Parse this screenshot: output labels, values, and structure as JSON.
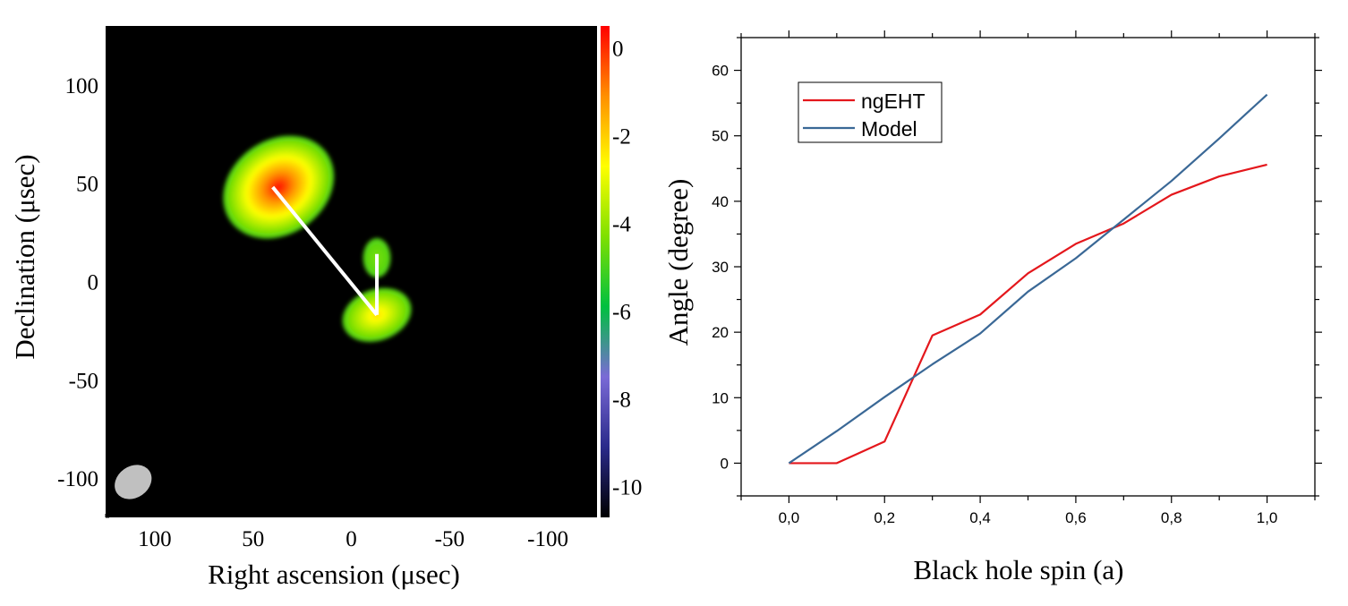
{
  "chart_data": [
    {
      "type": "heatmap",
      "xlabel": "Right ascension (μsec)",
      "ylabel": "Declination (μsec)",
      "xlim": [
        125,
        -125
      ],
      "ylim": [
        -120,
        130
      ],
      "xticks": [
        100,
        50,
        0,
        -50,
        -100
      ],
      "yticks": [
        100,
        50,
        0,
        -50,
        -100
      ],
      "xtick_labels": [
        "100",
        "50",
        "0",
        "-50",
        "-100"
      ],
      "ytick_labels": [
        "100",
        "50",
        "0",
        "-50",
        "-100"
      ],
      "background_color": "#000000",
      "colorbar": {
        "min": -10.7,
        "max": 0.5,
        "ticks": [
          0,
          -2,
          -4,
          -6,
          -8,
          -10
        ],
        "tick_labels": [
          "0",
          "-2",
          "-4",
          "-6",
          "-8",
          "-10"
        ],
        "colors": [
          "#000000",
          "#2a2a8a",
          "#7a6ad6",
          "#00c040",
          "#7fe000",
          "#ffff00",
          "#ff9000",
          "#ff0000"
        ]
      },
      "sources": [
        {
          "name": "primary",
          "x": 37,
          "y": 48,
          "peak": 0.3,
          "rx": 30,
          "ry": 24,
          "angle": -35
        },
        {
          "name": "secondary",
          "x": -13,
          "y": -17,
          "peak": -2.2,
          "rx": 18,
          "ry": 13,
          "angle": -20
        },
        {
          "name": "faint",
          "x": -13,
          "y": 12,
          "peak": -4.4,
          "rx": 7,
          "ry": 10,
          "angle": 0
        }
      ],
      "lines": [
        {
          "color": "#ffffff",
          "points": [
            [
              40,
              48
            ],
            [
              -13,
              -17
            ]
          ]
        },
        {
          "color": "#ffffff",
          "points": [
            [
              -13,
              -17
            ],
            [
              -13,
              14
            ]
          ]
        }
      ],
      "beam": {
        "x": 111,
        "y": -102,
        "width": 20,
        "height": 16,
        "angle": -35,
        "color": "#c0c0c0"
      }
    },
    {
      "type": "line",
      "xlabel": "Black hole spin (a)",
      "ylabel": "Angle (degree)",
      "xlim": [
        -0.1,
        1.1
      ],
      "ylim": [
        -5,
        65
      ],
      "xticks": [
        0.0,
        0.2,
        0.4,
        0.6,
        0.8,
        1.0
      ],
      "xtick_labels": [
        "0,0",
        "0,2",
        "0,4",
        "0,6",
        "0,8",
        "1,0"
      ],
      "yticks": [
        0,
        10,
        20,
        30,
        40,
        50,
        60
      ],
      "ytick_labels": [
        "0",
        "10",
        "20",
        "30",
        "40",
        "50",
        "60"
      ],
      "legend_position": "top-left",
      "series": [
        {
          "name": "ngEHT",
          "color": "#e4171c",
          "x": [
            0.0,
            0.1,
            0.2,
            0.3,
            0.4,
            0.5,
            0.6,
            0.7,
            0.8,
            0.9,
            1.0
          ],
          "y": [
            0,
            0,
            3.3,
            19.5,
            22.7,
            29.0,
            33.5,
            36.6,
            41.0,
            43.8,
            45.6
          ]
        },
        {
          "name": "Model",
          "color": "#3a6896",
          "x": [
            0.0,
            0.1,
            0.2,
            0.3,
            0.4,
            0.5,
            0.6,
            0.7,
            0.8,
            0.9,
            1.0
          ],
          "y": [
            0,
            4.9,
            10.1,
            15.1,
            19.8,
            26.2,
            31.3,
            37.2,
            43.1,
            49.6,
            56.3
          ]
        }
      ]
    }
  ]
}
